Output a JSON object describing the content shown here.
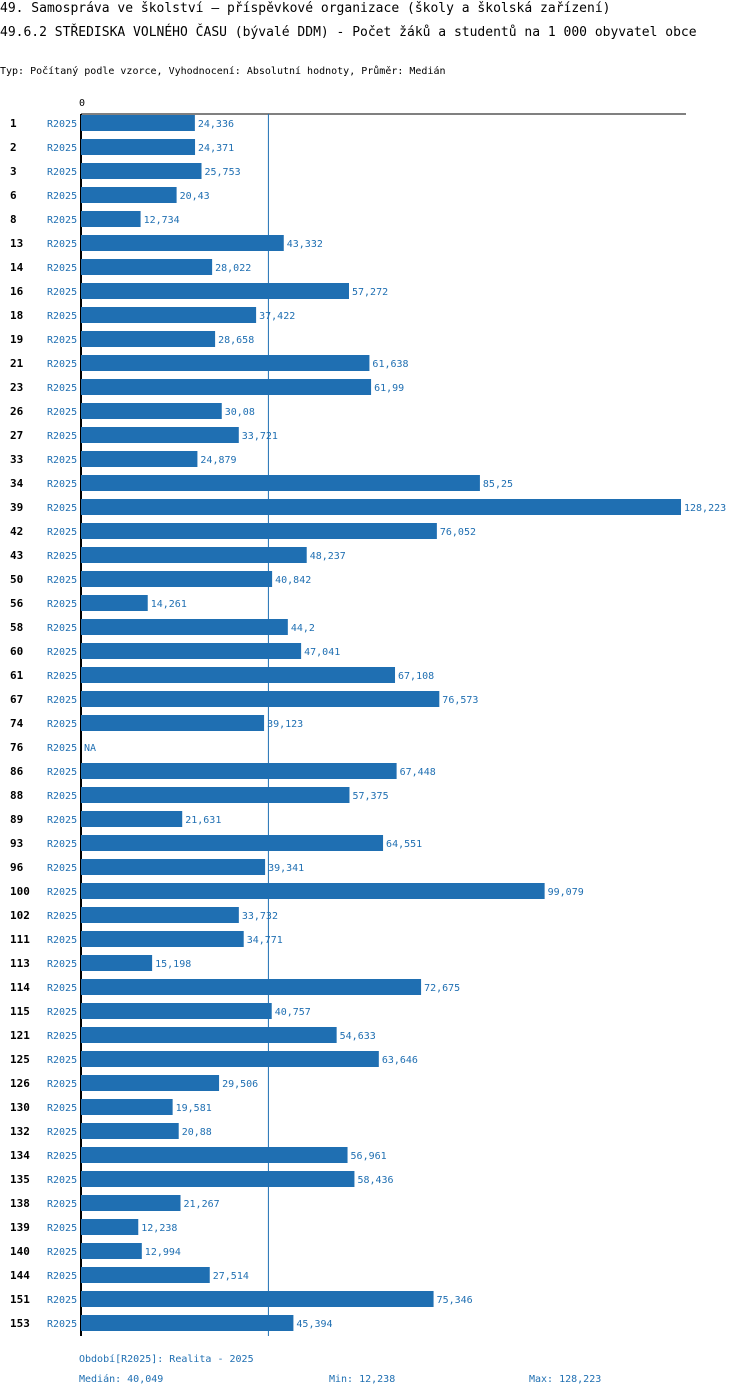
{
  "title_line1": "49. Samospráva ve školství – příspěvkové organizace (školy a školská zařízení)",
  "title_line2": "49.6.2 STŘEDISKA VOLNÉHO ČASU (bývalé DDM) - Počet žáků a studentů na 1 000 obyvatel obce",
  "subtitle": "Typ: Počítaný podle vzorce, Vyhodnocení: Absolutní hodnoty, Průměr: Medián",
  "colors": {
    "bar": "#1f6fb2",
    "label": "#1f6fb2"
  },
  "chart_data": {
    "type": "bar",
    "orientation": "horizontal",
    "period": "R2025",
    "axis_zero_label": "0",
    "xlim": [
      0,
      128.223
    ],
    "median": 40.049,
    "categories": [
      "1",
      "2",
      "3",
      "6",
      "8",
      "13",
      "14",
      "16",
      "18",
      "19",
      "21",
      "23",
      "26",
      "27",
      "33",
      "34",
      "39",
      "42",
      "43",
      "50",
      "56",
      "58",
      "60",
      "61",
      "67",
      "74",
      "76",
      "86",
      "88",
      "89",
      "93",
      "96",
      "100",
      "102",
      "111",
      "113",
      "114",
      "115",
      "121",
      "125",
      "126",
      "130",
      "132",
      "134",
      "135",
      "138",
      "139",
      "140",
      "144",
      "151",
      "153"
    ],
    "values": [
      24.336,
      24.371,
      25.753,
      20.43,
      12.734,
      43.332,
      28.022,
      57.272,
      37.422,
      28.658,
      61.638,
      61.99,
      30.08,
      33.721,
      24.879,
      85.25,
      128.223,
      76.052,
      48.237,
      40.842,
      14.261,
      44.2,
      47.041,
      67.108,
      76.573,
      39.123,
      null,
      67.448,
      57.375,
      21.631,
      64.551,
      39.341,
      99.079,
      33.732,
      34.771,
      15.198,
      72.675,
      40.757,
      54.633,
      63.646,
      29.506,
      19.581,
      20.88,
      56.961,
      58.436,
      21.267,
      12.238,
      12.994,
      27.514,
      75.346,
      45.394
    ],
    "value_labels": [
      "24,336",
      "24,371",
      "25,753",
      "20,43",
      "12,734",
      "43,332",
      "28,022",
      "57,272",
      "37,422",
      "28,658",
      "61,638",
      "61,99",
      "30,08",
      "33,721",
      "24,879",
      "85,25",
      "128,223",
      "76,052",
      "48,237",
      "40,842",
      "14,261",
      "44,2",
      "47,041",
      "67,108",
      "76,573",
      "39,123",
      "NA",
      "67,448",
      "57,375",
      "21,631",
      "64,551",
      "39,341",
      "99,079",
      "33,732",
      "34,771",
      "15,198",
      "72,675",
      "40,757",
      "54,633",
      "63,646",
      "29,506",
      "19,581",
      "20,88",
      "56,961",
      "58,436",
      "21,267",
      "12,238",
      "12,994",
      "27,514",
      "75,346",
      "45,394"
    ]
  },
  "footer": {
    "period_text": "Období[R2025]: Realita - 2025",
    "median_text": "Medián: 40,049",
    "min_text": "Min: 12,238",
    "max_text": "Max: 128,223"
  }
}
